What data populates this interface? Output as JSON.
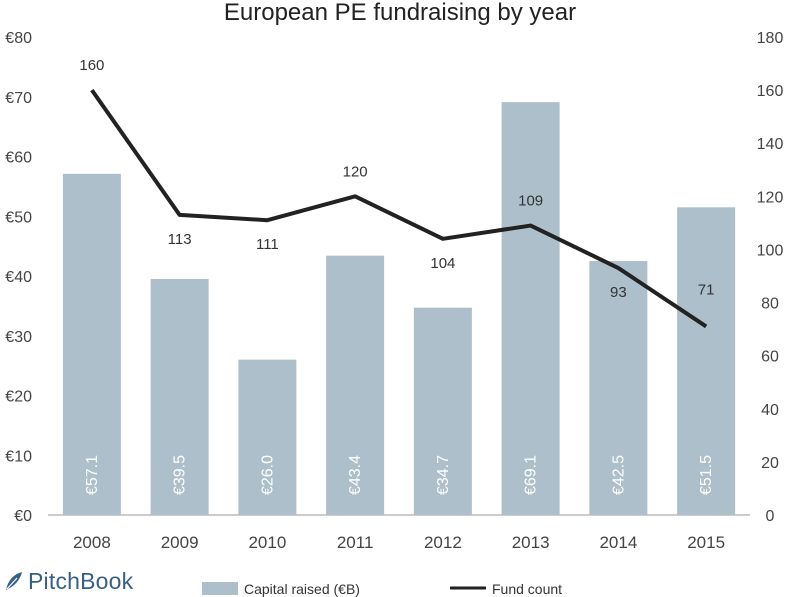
{
  "chart_data": {
    "type": "bar",
    "title": "European PE fundraising by year",
    "categories": [
      "2008",
      "2009",
      "2010",
      "2011",
      "2012",
      "2013",
      "2014",
      "2015"
    ],
    "series": [
      {
        "name": "Capital raised (€B)",
        "type": "bar",
        "axis": "left",
        "values": [
          57.1,
          39.5,
          26.0,
          43.4,
          34.7,
          69.1,
          42.5,
          51.5
        ],
        "labels": [
          "€57.1",
          "€39.5",
          "€26.0",
          "€43.4",
          "€34.7",
          "€69.1",
          "€42.5",
          "€51.5"
        ],
        "color": "#adbfca"
      },
      {
        "name": "Fund count",
        "type": "line",
        "axis": "right",
        "values": [
          160,
          113,
          111,
          120,
          104,
          109,
          93,
          71
        ],
        "labels": [
          "160",
          "113",
          "111",
          "120",
          "104",
          "109",
          "93",
          "71"
        ],
        "color": "#222222"
      }
    ],
    "left_axis": {
      "ylim": [
        0,
        80
      ],
      "ticks": [
        0,
        10,
        20,
        30,
        40,
        50,
        60,
        70,
        80
      ],
      "tick_labels": [
        "€0",
        "€10",
        "€20",
        "€30",
        "€40",
        "€50",
        "€60",
        "€70",
        "€80"
      ]
    },
    "right_axis": {
      "ylim": [
        0,
        180
      ],
      "ticks": [
        0,
        20,
        40,
        60,
        80,
        100,
        120,
        140,
        160,
        180
      ],
      "tick_labels": [
        "0",
        "20",
        "40",
        "60",
        "80",
        "100",
        "120",
        "140",
        "160",
        "180"
      ]
    },
    "grid": false,
    "legend": "bottom"
  },
  "brand": {
    "name": "PitchBook",
    "icon": "pitchbook-leaf-icon",
    "color": "#3a5f87"
  }
}
